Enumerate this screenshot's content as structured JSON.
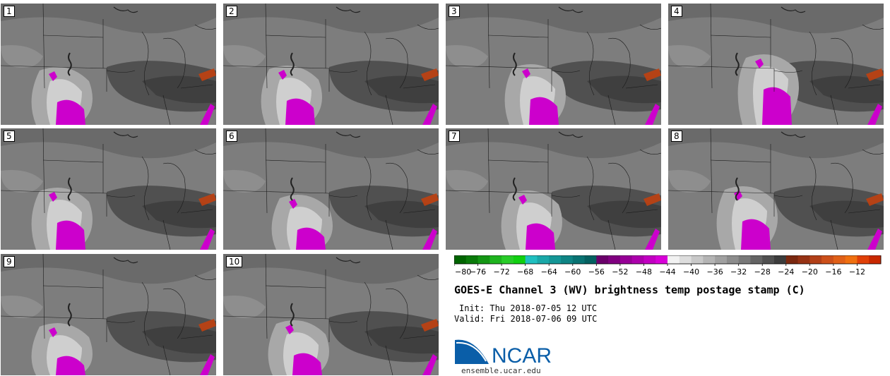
{
  "title": "GOES-E Channel 3 (WV) brightness temp postage stamp (C)",
  "init_line": "Init: Thu 2018-07-05 12 UTC",
  "valid_line": "Valid: Fri 2018-07-06 09 UTC",
  "logo_text": "NCAR",
  "site": "ensemble.ucar.edu",
  "members": [
    "1",
    "2",
    "3",
    "4",
    "5",
    "6",
    "7",
    "8",
    "9",
    "10"
  ],
  "colorbar": {
    "ticks": [
      "−80",
      "−76",
      "−72",
      "−68",
      "−64",
      "−60",
      "−56",
      "−52",
      "−48",
      "−44",
      "−40",
      "−36",
      "−32",
      "−28",
      "−24",
      "−20",
      "−16",
      "−12"
    ],
    "colors": [
      "#006400",
      "#0a7a0a",
      "#149614",
      "#1eb41e",
      "#28cc28",
      "#10d010",
      "#20c0c0",
      "#1aa8a8",
      "#149696",
      "#0e8484",
      "#087272",
      "#046060",
      "#6a006a",
      "#800080",
      "#960096",
      "#ac00ac",
      "#c200c2",
      "#d800d8",
      "#f2f2f2",
      "#dddddd",
      "#c8c8c8",
      "#b4b4b4",
      "#a0a0a0",
      "#8c8c8c",
      "#787878",
      "#646464",
      "#505050",
      "#3c3c3c",
      "#7a2810",
      "#963214",
      "#b24018",
      "#cc501a",
      "#e06018",
      "#f07010",
      "#e04008",
      "#c82800"
    ]
  },
  "accent_colors": {
    "convection": "#cc00cc",
    "warm": "#c04010",
    "ncar_blue": "#0a5ea8"
  }
}
